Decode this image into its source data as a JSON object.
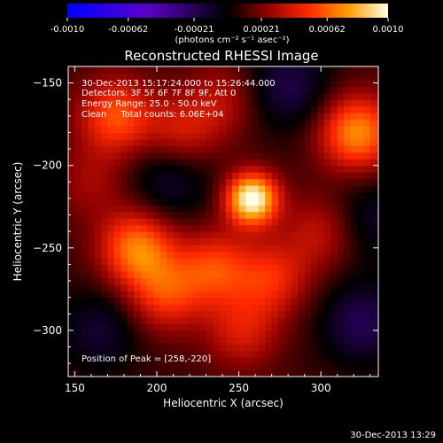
{
  "chart_data": {
    "type": "heatmap",
    "title": "Reconstructed RHESSI Image",
    "xlabel": "Heliocentric X (arcsec)",
    "ylabel": "Heliocentric Y (arcsec)",
    "xlim": [
      146,
      335
    ],
    "ylim": [
      -328,
      -140
    ],
    "x_ticks": [
      150,
      200,
      250,
      300
    ],
    "y_ticks": [
      -150,
      -200,
      -250,
      -300
    ],
    "colorbar": {
      "range": [
        -0.001,
        0.001
      ],
      "ticks": [
        "-0.0010",
        "-0.00062",
        "-0.00021",
        "0.00021",
        "0.00062",
        "0.0010"
      ],
      "tick_values": [
        -0.001,
        -0.00062,
        -0.00021,
        0.00021,
        0.00062,
        0.001
      ],
      "units": "(photons cm⁻² s⁻¹ asec⁻²)"
    },
    "annotations": [
      "30-Dec-2013 15:17:24.000 to 15:26:44.000",
      "Detectors: 3F 5F 6F 7F 8F 9F, Att 0",
      "Energy Range: 25.0 - 50.0 keV",
      "Clean     Total counts: 6.06E+04"
    ],
    "peak_label": "Position of Peak = [258,-220]",
    "peak": [
      258,
      -220
    ],
    "sources": [
      {
        "x": 258,
        "y": -220,
        "amplitude": 0.00095
      },
      {
        "x": 322,
        "y": -180,
        "amplitude": 0.00062
      },
      {
        "x": 175,
        "y": -170,
        "amplitude": 0.00048
      },
      {
        "x": 188,
        "y": -250,
        "amplitude": 0.00058
      },
      {
        "x": 205,
        "y": -278,
        "amplitude": 0.0004
      },
      {
        "x": 235,
        "y": -262,
        "amplitude": 0.00042
      },
      {
        "x": 270,
        "y": -268,
        "amplitude": 0.00036
      },
      {
        "x": 252,
        "y": -300,
        "amplitude": 0.0003
      },
      {
        "x": 300,
        "y": -240,
        "amplitude": 0.00026
      },
      {
        "x": 215,
        "y": -180,
        "amplitude": 0.0003
      },
      {
        "x": 240,
        "y": -160,
        "amplitude": 0.00022
      },
      {
        "x": 160,
        "y": -210,
        "amplitude": 0.00018
      },
      {
        "x": 325,
        "y": -295,
        "amplitude": -0.0003
      },
      {
        "x": 280,
        "y": -152,
        "amplitude": -0.00028
      },
      {
        "x": 208,
        "y": -208,
        "amplitude": -0.00024
      },
      {
        "x": 165,
        "y": -300,
        "amplitude": -0.00022
      },
      {
        "x": 330,
        "y": -232,
        "amplitude": -0.0002
      }
    ]
  },
  "footer": {
    "timestamp": "30-Dec-2013 13:29"
  }
}
